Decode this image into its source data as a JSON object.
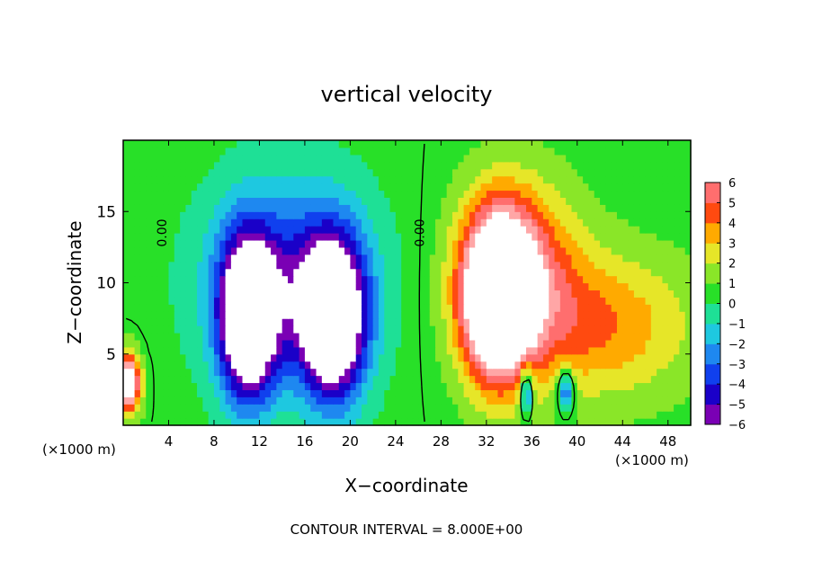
{
  "chart_data": {
    "type": "heatmap",
    "title": "vertical velocity",
    "xlabel": "X−coordinate",
    "ylabel": "Z−coordinate",
    "x_unit_left": "(×1000 m)",
    "x_unit_right": "(×1000 m)",
    "footer": "CONTOUR INTERVAL = 8.000E+00",
    "xlim": [
      0,
      50
    ],
    "ylim": [
      0,
      20
    ],
    "x_ticks": [
      4,
      8,
      12,
      16,
      20,
      24,
      28,
      32,
      36,
      40,
      44,
      48
    ],
    "x_tick_labels": [
      "4",
      "8",
      "12",
      "16",
      "20",
      "24",
      "28",
      "32",
      "36",
      "40",
      "44",
      "48"
    ],
    "y_ticks": [
      5,
      10,
      15
    ],
    "y_tick_labels": [
      "5",
      "10",
      "15"
    ],
    "contour_labels": [
      {
        "text": "0.00",
        "x": 3.8,
        "z": 13.5
      },
      {
        "text": "0.00",
        "x": 26.5,
        "z": 13.5
      }
    ],
    "colorbar": {
      "levels": [
        -6,
        -5,
        -4,
        -3,
        -2,
        -1,
        0,
        1,
        2,
        3,
        4,
        5,
        6
      ],
      "tick_labels": [
        "−6",
        "−5",
        "−4",
        "−3",
        "−2",
        "−1",
        "0",
        "1",
        "2",
        "3",
        "4",
        "5",
        "6"
      ],
      "colors": [
        "#7a00b4",
        "#1a00c8",
        "#1040ee",
        "#1e88f0",
        "#1ec8e0",
        "#1ee096",
        "#28e028",
        "#8ae628",
        "#e6e628",
        "#ffaa00",
        "#ff4a10",
        "#ff6e6e",
        "#ffa6a6"
      ]
    },
    "features": [
      {
        "sign": "negative",
        "x": 11,
        "z": 7.5,
        "sx": 2.4,
        "sz": 5.5,
        "peak": -10
      },
      {
        "sign": "negative",
        "x": 18.5,
        "z": 7.5,
        "sx": 2.8,
        "sz": 5.5,
        "peak": -10
      },
      {
        "sign": "negative",
        "x": 14.5,
        "z": 10,
        "sx": 7,
        "sz": 7,
        "peak": -4.5
      },
      {
        "sign": "positive",
        "x": 33,
        "z": 9,
        "sx": 3,
        "sz": 5.5,
        "peak": 12
      },
      {
        "sign": "positive",
        "x": 35,
        "z": 11,
        "sx": 5,
        "sz": 6,
        "peak": 4.5
      },
      {
        "sign": "positive",
        "x": 42,
        "z": 7,
        "sx": 8,
        "sz": 5,
        "peak": 3.5
      },
      {
        "sign": "positive",
        "x": 0.5,
        "z": 3,
        "sx": 1,
        "sz": 2,
        "peak": 9
      },
      {
        "sign": "negative",
        "x": 35.5,
        "z": 2.5,
        "sx": 0.6,
        "sz": 1.8,
        "peak": -5
      },
      {
        "sign": "negative",
        "x": 39,
        "z": 2.5,
        "sx": 0.7,
        "sz": 1.5,
        "peak": -5
      }
    ]
  }
}
